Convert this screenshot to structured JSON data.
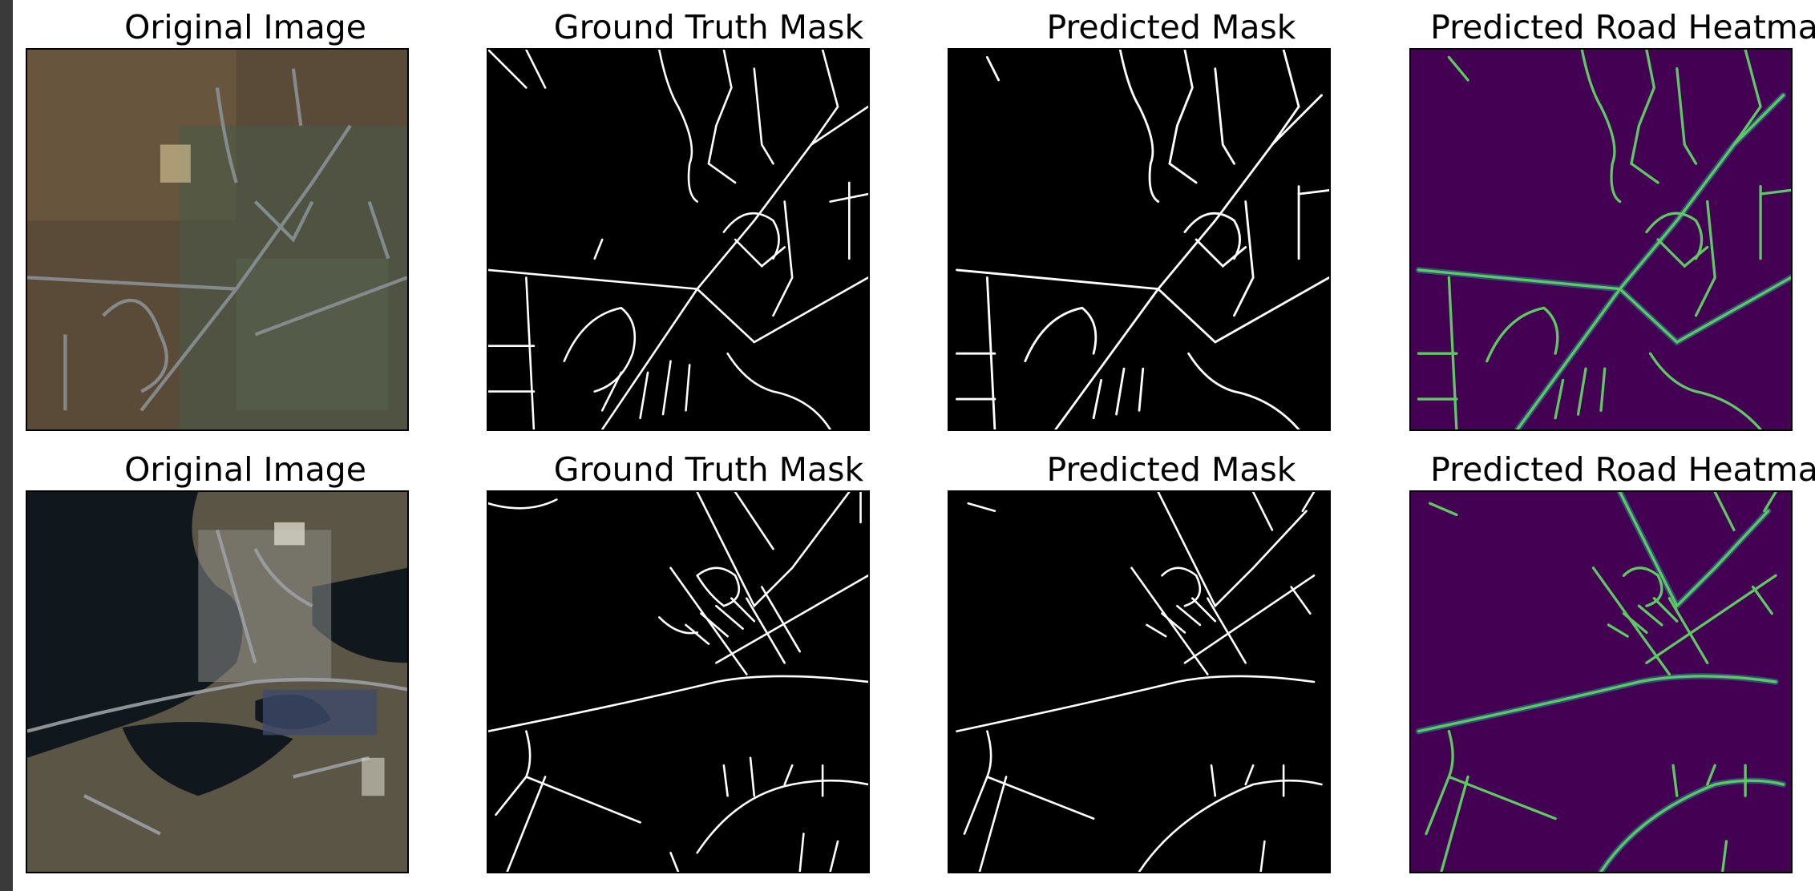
{
  "rows": [
    {
      "titles": {
        "original": "Original Image",
        "ground_truth": "Ground Truth Mask",
        "predicted": "Predicted Mask",
        "heatmap": "Predicted Road Heatmap"
      }
    },
    {
      "titles": {
        "original": "Original Image",
        "ground_truth": "Ground Truth Mask",
        "predicted": "Predicted Mask",
        "heatmap": "Predicted Road Heatmap"
      }
    }
  ],
  "colors": {
    "mask_background": "#000000",
    "mask_road": "#ffffff",
    "heatmap_background": "#440154",
    "heatmap_road": "#5ec962",
    "heatmap_edge": "#21918c",
    "aerial_vegetation": "#5a4a38",
    "aerial_water": "#11181d"
  },
  "icons": [
    "aerial-image",
    "road-mask",
    "heatmap"
  ]
}
